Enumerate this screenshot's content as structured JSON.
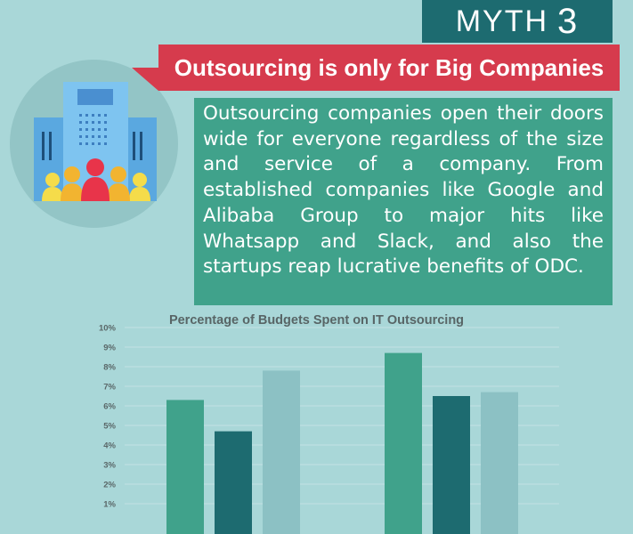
{
  "badge": {
    "word": "MYTH",
    "number": "3"
  },
  "headline": "Outsourcing is only for Big Companies",
  "body_text": "Outsourcing companies open their doors wide for everyone regardless of the size and service of a company. From established companies like Google and Alibaba Group to major hits like Whatsapp and Slack, and also the startups reap lucrative benefits of ODC.",
  "illustration": {
    "icon": "office-building-with-people-icon"
  },
  "colors": {
    "background": "#a9d7d8",
    "badge": "#1d6b70",
    "ribbon": "#d63b4d",
    "text_box": "#40a28b",
    "series": [
      "#40a28b",
      "#1d6b70",
      "#8cc1c4"
    ]
  },
  "chart_data": {
    "type": "bar",
    "title": "Percentage of Budgets Spent on IT Outsourcing",
    "categories": [
      "",
      ""
    ],
    "series": [
      {
        "values": [
          6.3,
          8.7
        ]
      },
      {
        "values": [
          4.7,
          6.5
        ]
      },
      {
        "values": [
          7.8,
          6.7
        ]
      }
    ],
    "y_ticks": [
      "1%",
      "2%",
      "3%",
      "4%",
      "5%",
      "6%",
      "7%",
      "8%",
      "9%",
      "10%"
    ],
    "ylim": [
      0,
      10
    ],
    "grid": true
  }
}
